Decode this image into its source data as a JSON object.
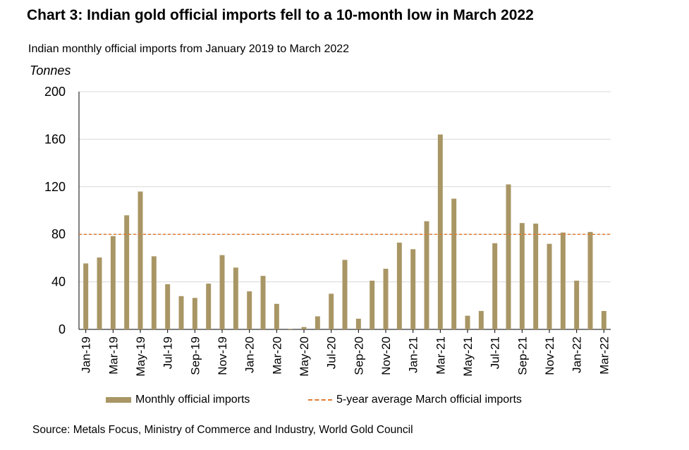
{
  "chart_data": {
    "type": "bar",
    "title": "Chart 3: Indian gold official imports fell to a 10-month low in March 2022",
    "subtitle": "Indian monthly official imports from January 2019 to March 2022",
    "ylabel": "Tonnes",
    "xlabel": "",
    "ylim": [
      0,
      200
    ],
    "yticks": [
      0,
      40,
      80,
      120,
      160,
      200
    ],
    "grid": true,
    "categories": [
      "Jan-19",
      "Feb-19",
      "Mar-19",
      "Apr-19",
      "May-19",
      "Jun-19",
      "Jul-19",
      "Aug-19",
      "Sep-19",
      "Oct-19",
      "Nov-19",
      "Dec-19",
      "Jan-20",
      "Feb-20",
      "Mar-20",
      "Apr-20",
      "May-20",
      "Jun-20",
      "Jul-20",
      "Aug-20",
      "Sep-20",
      "Oct-20",
      "Nov-20",
      "Dec-20",
      "Jan-21",
      "Feb-21",
      "Mar-21",
      "Apr-21",
      "May-21",
      "Jun-21",
      "Jul-21",
      "Aug-21",
      "Sep-21",
      "Oct-21",
      "Nov-21",
      "Dec-21",
      "Jan-22",
      "Feb-22",
      "Mar-22"
    ],
    "tick_labels": [
      "Jan-19",
      "Mar-19",
      "May-19",
      "Jul-19",
      "Sep-19",
      "Nov-19",
      "Jan-20",
      "Mar-20",
      "May-20",
      "Jul-20",
      "Sep-20",
      "Nov-20",
      "Jan-21",
      "Mar-21",
      "May-21",
      "Jul-21",
      "Sep-21",
      "Nov-21",
      "Jan-22",
      "Mar-22"
    ],
    "series": [
      {
        "name": "Monthly official imports",
        "color": "#a99665",
        "values": [
          55.5,
          60.5,
          78.5,
          96,
          116,
          61.5,
          38,
          28,
          26.5,
          38.5,
          62.5,
          52,
          32,
          45,
          21.5,
          0.5,
          2,
          11,
          30,
          58.5,
          9,
          41,
          51,
          73,
          67.5,
          91,
          164,
          110,
          11.5,
          15.5,
          72.5,
          122,
          89.5,
          89,
          72,
          81.5,
          41,
          82,
          15.5
        ]
      },
      {
        "name": "5-year average March official imports",
        "color": "#e07b32",
        "type": "hline",
        "value": 80
      }
    ],
    "legend_position": "bottom",
    "source": "Source: Metals Focus, Ministry of Commerce and Industry, World Gold Council"
  }
}
